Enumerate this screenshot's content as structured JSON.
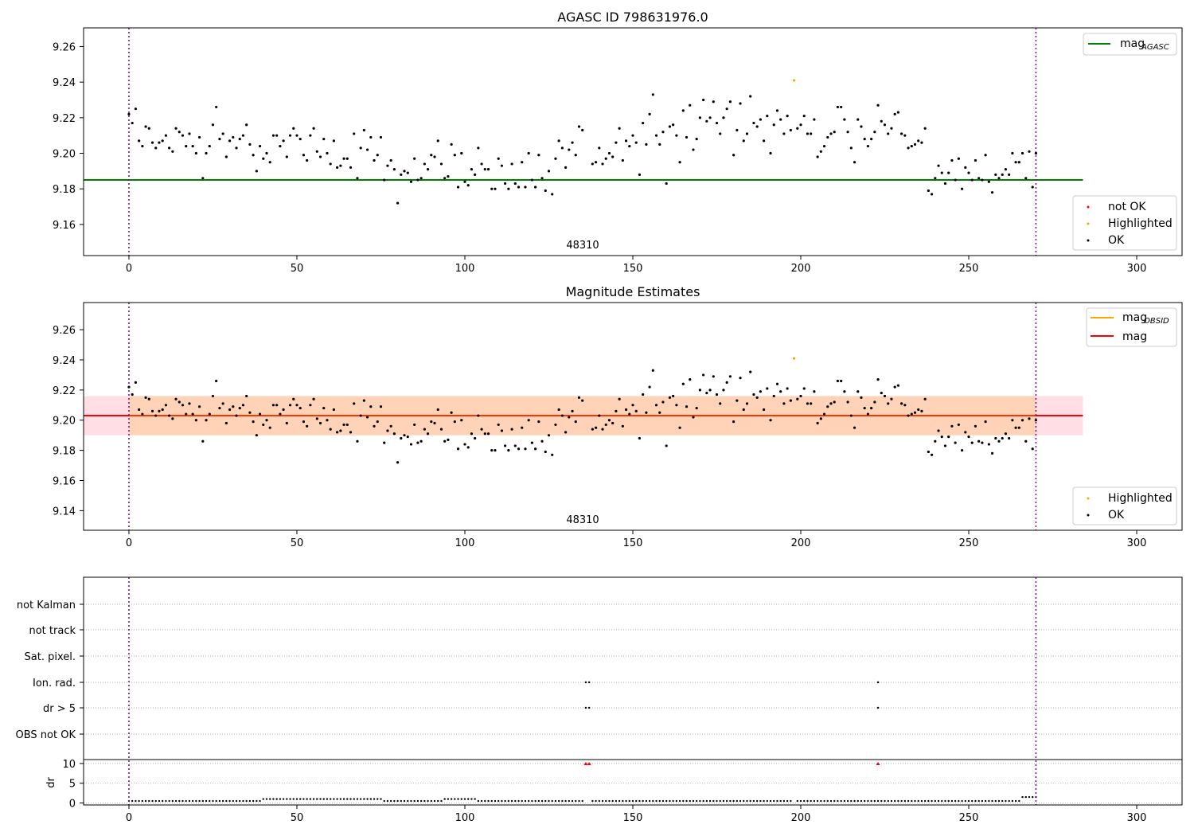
{
  "chart_data": [
    {
      "type": "scatter",
      "title": "AGASC ID 798631976.0",
      "xlim": [
        -13.5,
        313.5
      ],
      "ylim": [
        9.1425,
        9.2705
      ],
      "xticks": [
        0,
        50,
        100,
        150,
        200,
        250,
        300
      ],
      "yticks": [
        9.16,
        9.18,
        9.2,
        9.22,
        9.24,
        9.26
      ],
      "ytick_labels": [
        "9.16",
        "9.18",
        "9.20",
        "9.22",
        "9.24",
        "9.26"
      ],
      "obsid_label": "48310",
      "obsid_boundaries": [
        0,
        270
      ],
      "mag_agasc": 9.185,
      "mag_agasc_x_range": [
        -13.5,
        284
      ],
      "legend_upper": [
        {
          "label": "mag",
          "sub": "AGASC",
          "color": "#008000"
        }
      ],
      "legend_lower": [
        {
          "label": "not OK",
          "color": "#ff0000"
        },
        {
          "label": "Highlighted",
          "color": "#ffa500"
        },
        {
          "label": "OK",
          "color": "#000000"
        }
      ],
      "highlighted_points": [
        {
          "x": 198,
          "y": 9.241
        }
      ],
      "grid": false,
      "legend_position": "upper right / lower right"
    },
    {
      "type": "scatter",
      "title": "Magnitude Estimates",
      "xlim": [
        -13.5,
        313.5
      ],
      "ylim": [
        9.127,
        9.278
      ],
      "xticks": [
        0,
        50,
        100,
        150,
        200,
        250,
        300
      ],
      "yticks": [
        9.14,
        9.16,
        9.18,
        9.2,
        9.22,
        9.24,
        9.26
      ],
      "ytick_labels": [
        "9.14",
        "9.16",
        "9.18",
        "9.20",
        "9.22",
        "9.24",
        "9.26"
      ],
      "obsid_label": "48310",
      "mag_obsid": 9.203,
      "mag": 9.203,
      "mag_band": [
        9.19,
        9.216
      ],
      "legend_upper": [
        {
          "label": "mag",
          "sub": "OBSID",
          "color": "#ffa500"
        },
        {
          "label": "mag",
          "sub": "",
          "color": "#ff0000"
        }
      ],
      "legend_lower": [
        {
          "label": "Highlighted",
          "color": "#ffa500"
        },
        {
          "label": "OK",
          "color": "#000000"
        }
      ],
      "highlighted_points": [
        {
          "x": 198,
          "y": 9.241
        }
      ],
      "grid": false
    },
    {
      "type": "scatter",
      "title": "",
      "xlim": [
        -13.5,
        313.5
      ],
      "xticks": [
        0,
        50,
        100,
        150,
        200,
        250,
        300
      ],
      "flag_rows": [
        "not Kalman",
        "not track",
        "Sat. pixel.",
        "Ion. rad.",
        "dr > 5",
        "OBS not OK"
      ],
      "flag_points": [
        {
          "row": "Ion. rad.",
          "x": [
            136,
            137,
            223
          ]
        },
        {
          "row": "dr > 5",
          "x": [
            136,
            137,
            223
          ]
        }
      ],
      "dr_ylabel": "dr",
      "dr_ylim": [
        -0.5,
        11
      ],
      "dr_yticks": [
        0,
        5,
        10
      ],
      "dr_outliers": [
        {
          "x": 136,
          "y": 10
        },
        {
          "x": 137,
          "y": 10
        },
        {
          "x": 223,
          "y": 10
        }
      ],
      "grid": "horizontal dotted"
    }
  ],
  "mag_series": [
    {
      "x": 0,
      "y": 9.222
    },
    {
      "x": 1,
      "y": 9.217
    },
    {
      "x": 2,
      "y": 9.225
    },
    {
      "x": 3,
      "y": 9.207
    },
    {
      "x": 4,
      "y": 9.204
    },
    {
      "x": 5,
      "y": 9.215
    },
    {
      "x": 6,
      "y": 9.214
    },
    {
      "x": 7,
      "y": 9.206
    },
    {
      "x": 8,
      "y": 9.203
    },
    {
      "x": 9,
      "y": 9.206
    },
    {
      "x": 10,
      "y": 9.207
    },
    {
      "x": 11,
      "y": 9.21
    },
    {
      "x": 12,
      "y": 9.203
    },
    {
      "x": 13,
      "y": 9.201
    },
    {
      "x": 14,
      "y": 9.214
    },
    {
      "x": 15,
      "y": 9.212
    },
    {
      "x": 16,
      "y": 9.21
    },
    {
      "x": 17,
      "y": 9.204
    },
    {
      "x": 18,
      "y": 9.211
    },
    {
      "x": 19,
      "y": 9.204
    },
    {
      "x": 20,
      "y": 9.2
    },
    {
      "x": 21,
      "y": 9.209
    },
    {
      "x": 22,
      "y": 9.186
    },
    {
      "x": 23,
      "y": 9.2
    },
    {
      "x": 24,
      "y": 9.204
    },
    {
      "x": 25,
      "y": 9.216
    },
    {
      "x": 26,
      "y": 9.226
    },
    {
      "x": 27,
      "y": 9.208
    },
    {
      "x": 28,
      "y": 9.211
    },
    {
      "x": 29,
      "y": 9.198
    },
    {
      "x": 30,
      "y": 9.207
    },
    {
      "x": 31,
      "y": 9.209
    },
    {
      "x": 32,
      "y": 9.203
    },
    {
      "x": 33,
      "y": 9.208
    },
    {
      "x": 34,
      "y": 9.21
    },
    {
      "x": 35,
      "y": 9.216
    },
    {
      "x": 36,
      "y": 9.205
    },
    {
      "x": 37,
      "y": 9.199
    },
    {
      "x": 38,
      "y": 9.19
    },
    {
      "x": 39,
      "y": 9.204
    },
    {
      "x": 40,
      "y": 9.197
    },
    {
      "x": 41,
      "y": 9.2
    },
    {
      "x": 42,
      "y": 9.195
    },
    {
      "x": 43,
      "y": 9.21
    },
    {
      "x": 44,
      "y": 9.21
    },
    {
      "x": 45,
      "y": 9.204
    },
    {
      "x": 46,
      "y": 9.207
    },
    {
      "x": 47,
      "y": 9.198
    },
    {
      "x": 48,
      "y": 9.21
    },
    {
      "x": 49,
      "y": 9.214
    },
    {
      "x": 50,
      "y": 9.21
    },
    {
      "x": 51,
      "y": 9.208
    },
    {
      "x": 52,
      "y": 9.199
    },
    {
      "x": 53,
      "y": 9.196
    },
    {
      "x": 54,
      "y": 9.21
    },
    {
      "x": 55,
      "y": 9.214
    },
    {
      "x": 56,
      "y": 9.201
    },
    {
      "x": 57,
      "y": 9.198
    },
    {
      "x": 58,
      "y": 9.208
    },
    {
      "x": 59,
      "y": 9.2
    },
    {
      "x": 60,
      "y": 9.194
    },
    {
      "x": 61,
      "y": 9.207
    },
    {
      "x": 62,
      "y": 9.192
    },
    {
      "x": 63,
      "y": 9.193
    },
    {
      "x": 64,
      "y": 9.197
    },
    {
      "x": 65,
      "y": 9.197
    },
    {
      "x": 66,
      "y": 9.192
    },
    {
      "x": 67,
      "y": 9.211
    },
    {
      "x": 68,
      "y": 9.186
    },
    {
      "x": 69,
      "y": 9.203
    },
    {
      "x": 70,
      "y": 9.213
    },
    {
      "x": 71,
      "y": 9.202
    },
    {
      "x": 72,
      "y": 9.209
    },
    {
      "x": 73,
      "y": 9.196
    },
    {
      "x": 74,
      "y": 9.199
    },
    {
      "x": 75,
      "y": 9.209
    },
    {
      "x": 76,
      "y": 9.185
    },
    {
      "x": 77,
      "y": 9.193
    },
    {
      "x": 78,
      "y": 9.196
    },
    {
      "x": 79,
      "y": 9.191
    },
    {
      "x": 80,
      "y": 9.172
    },
    {
      "x": 81,
      "y": 9.188
    },
    {
      "x": 82,
      "y": 9.19
    },
    {
      "x": 83,
      "y": 9.189
    },
    {
      "x": 84,
      "y": 9.184
    },
    {
      "x": 85,
      "y": 9.197
    },
    {
      "x": 86,
      "y": 9.185
    },
    {
      "x": 87,
      "y": 9.186
    },
    {
      "x": 88,
      "y": 9.194
    },
    {
      "x": 89,
      "y": 9.191
    },
    {
      "x": 90,
      "y": 9.199
    },
    {
      "x": 91,
      "y": 9.198
    },
    {
      "x": 92,
      "y": 9.207
    },
    {
      "x": 93,
      "y": 9.194
    },
    {
      "x": 94,
      "y": 9.186
    },
    {
      "x": 95,
      "y": 9.187
    },
    {
      "x": 96,
      "y": 9.205
    },
    {
      "x": 97,
      "y": 9.199
    },
    {
      "x": 98,
      "y": 9.181
    },
    {
      "x": 99,
      "y": 9.2
    },
    {
      "x": 100,
      "y": 9.184
    },
    {
      "x": 101,
      "y": 9.182
    },
    {
      "x": 102,
      "y": 9.191
    },
    {
      "x": 103,
      "y": 9.188
    },
    {
      "x": 104,
      "y": 9.203
    },
    {
      "x": 105,
      "y": 9.194
    },
    {
      "x": 106,
      "y": 9.191
    },
    {
      "x": 107,
      "y": 9.191
    },
    {
      "x": 108,
      "y": 9.18
    },
    {
      "x": 109,
      "y": 9.18
    },
    {
      "x": 110,
      "y": 9.197
    },
    {
      "x": 111,
      "y": 9.193
    },
    {
      "x": 112,
      "y": 9.183
    },
    {
      "x": 113,
      "y": 9.18
    },
    {
      "x": 114,
      "y": 9.194
    },
    {
      "x": 115,
      "y": 9.183
    },
    {
      "x": 116,
      "y": 9.181
    },
    {
      "x": 117,
      "y": 9.195
    },
    {
      "x": 118,
      "y": 9.181
    },
    {
      "x": 119,
      "y": 9.2
    },
    {
      "x": 120,
      "y": 9.185
    },
    {
      "x": 121,
      "y": 9.181
    },
    {
      "x": 122,
      "y": 9.199
    },
    {
      "x": 123,
      "y": 9.186
    },
    {
      "x": 124,
      "y": 9.179
    },
    {
      "x": 125,
      "y": 9.19
    },
    {
      "x": 126,
      "y": 9.177
    },
    {
      "x": 127,
      "y": 9.197
    },
    {
      "x": 128,
      "y": 9.207
    },
    {
      "x": 129,
      "y": 9.203
    },
    {
      "x": 130,
      "y": 9.192
    },
    {
      "x": 131,
      "y": 9.202
    },
    {
      "x": 132,
      "y": 9.206
    },
    {
      "x": 133,
      "y": 9.199
    },
    {
      "x": 134,
      "y": 9.215
    },
    {
      "x": 135,
      "y": 9.213
    },
    {
      "x": 138,
      "y": 9.194
    },
    {
      "x": 139,
      "y": 9.195
    },
    {
      "x": 140,
      "y": 9.203
    },
    {
      "x": 141,
      "y": 9.194
    },
    {
      "x": 142,
      "y": 9.197
    },
    {
      "x": 143,
      "y": 9.2
    },
    {
      "x": 144,
      "y": 9.198
    },
    {
      "x": 145,
      "y": 9.206
    },
    {
      "x": 146,
      "y": 9.214
    },
    {
      "x": 147,
      "y": 9.196
    },
    {
      "x": 148,
      "y": 9.207
    },
    {
      "x": 149,
      "y": 9.204
    },
    {
      "x": 150,
      "y": 9.21
    },
    {
      "x": 151,
      "y": 9.206
    },
    {
      "x": 152,
      "y": 9.188
    },
    {
      "x": 153,
      "y": 9.217
    },
    {
      "x": 154,
      "y": 9.205
    },
    {
      "x": 155,
      "y": 9.222
    },
    {
      "x": 156,
      "y": 9.233
    },
    {
      "x": 157,
      "y": 9.21
    },
    {
      "x": 158,
      "y": 9.205
    },
    {
      "x": 159,
      "y": 9.212
    },
    {
      "x": 160,
      "y": 9.183
    },
    {
      "x": 161,
      "y": 9.215
    },
    {
      "x": 162,
      "y": 9.216
    },
    {
      "x": 163,
      "y": 9.21
    },
    {
      "x": 164,
      "y": 9.195
    },
    {
      "x": 165,
      "y": 9.224
    },
    {
      "x": 166,
      "y": 9.209
    },
    {
      "x": 167,
      "y": 9.227
    },
    {
      "x": 168,
      "y": 9.202
    },
    {
      "x": 169,
      "y": 9.208
    },
    {
      "x": 170,
      "y": 9.22
    },
    {
      "x": 171,
      "y": 9.23
    },
    {
      "x": 172,
      "y": 9.218
    },
    {
      "x": 173,
      "y": 9.22
    },
    {
      "x": 174,
      "y": 9.229
    },
    {
      "x": 175,
      "y": 9.217
    },
    {
      "x": 176,
      "y": 9.211
    },
    {
      "x": 177,
      "y": 9.22
    },
    {
      "x": 178,
      "y": 9.225
    },
    {
      "x": 179,
      "y": 9.229
    },
    {
      "x": 180,
      "y": 9.199
    },
    {
      "x": 181,
      "y": 9.213
    },
    {
      "x": 182,
      "y": 9.228
    },
    {
      "x": 183,
      "y": 9.207
    },
    {
      "x": 184,
      "y": 9.211
    },
    {
      "x": 185,
      "y": 9.232
    },
    {
      "x": 186,
      "y": 9.217
    },
    {
      "x": 187,
      "y": 9.215
    },
    {
      "x": 188,
      "y": 9.219
    },
    {
      "x": 189,
      "y": 9.207
    },
    {
      "x": 190,
      "y": 9.221
    },
    {
      "x": 191,
      "y": 9.2
    },
    {
      "x": 192,
      "y": 9.216
    },
    {
      "x": 193,
      "y": 9.224
    },
    {
      "x": 194,
      "y": 9.219
    },
    {
      "x": 195,
      "y": 9.211
    },
    {
      "x": 196,
      "y": 9.221
    },
    {
      "x": 197,
      "y": 9.213
    },
    {
      "x": 199,
      "y": 9.214
    },
    {
      "x": 200,
      "y": 9.216
    },
    {
      "x": 201,
      "y": 9.221
    },
    {
      "x": 202,
      "y": 9.211
    },
    {
      "x": 203,
      "y": 9.211
    },
    {
      "x": 204,
      "y": 9.219
    },
    {
      "x": 205,
      "y": 9.198
    },
    {
      "x": 206,
      "y": 9.201
    },
    {
      "x": 207,
      "y": 9.204
    },
    {
      "x": 208,
      "y": 9.209
    },
    {
      "x": 209,
      "y": 9.211
    },
    {
      "x": 210,
      "y": 9.212
    },
    {
      "x": 211,
      "y": 9.226
    },
    {
      "x": 212,
      "y": 9.226
    },
    {
      "x": 213,
      "y": 9.219
    },
    {
      "x": 214,
      "y": 9.212
    },
    {
      "x": 215,
      "y": 9.203
    },
    {
      "x": 216,
      "y": 9.195
    },
    {
      "x": 217,
      "y": 9.219
    },
    {
      "x": 218,
      "y": 9.215
    },
    {
      "x": 219,
      "y": 9.208
    },
    {
      "x": 220,
      "y": 9.204
    },
    {
      "x": 221,
      "y": 9.208
    },
    {
      "x": 222,
      "y": 9.212
    },
    {
      "x": 223,
      "y": 9.227
    },
    {
      "x": 224,
      "y": 9.218
    },
    {
      "x": 225,
      "y": 9.216
    },
    {
      "x": 226,
      "y": 9.211
    },
    {
      "x": 227,
      "y": 9.214
    },
    {
      "x": 228,
      "y": 9.222
    },
    {
      "x": 229,
      "y": 9.223
    },
    {
      "x": 230,
      "y": 9.211
    },
    {
      "x": 231,
      "y": 9.21
    },
    {
      "x": 232,
      "y": 9.203
    },
    {
      "x": 233,
      "y": 9.204
    },
    {
      "x": 234,
      "y": 9.205
    },
    {
      "x": 235,
      "y": 9.207
    },
    {
      "x": 236,
      "y": 9.206
    },
    {
      "x": 237,
      "y": 9.214
    },
    {
      "x": 238,
      "y": 9.179
    },
    {
      "x": 239,
      "y": 9.177
    },
    {
      "x": 240,
      "y": 9.186
    },
    {
      "x": 241,
      "y": 9.193
    },
    {
      "x": 242,
      "y": 9.189
    },
    {
      "x": 243,
      "y": 9.183
    },
    {
      "x": 244,
      "y": 9.189
    },
    {
      "x": 245,
      "y": 9.196
    },
    {
      "x": 246,
      "y": 9.185
    },
    {
      "x": 247,
      "y": 9.197
    },
    {
      "x": 248,
      "y": 9.18
    },
    {
      "x": 249,
      "y": 9.192
    },
    {
      "x": 250,
      "y": 9.189
    },
    {
      "x": 251,
      "y": 9.185
    },
    {
      "x": 252,
      "y": 9.196
    },
    {
      "x": 253,
      "y": 9.186
    },
    {
      "x": 254,
      "y": 9.185
    },
    {
      "x": 255,
      "y": 9.199
    },
    {
      "x": 256,
      "y": 9.184
    },
    {
      "x": 257,
      "y": 9.178
    },
    {
      "x": 258,
      "y": 9.188
    },
    {
      "x": 259,
      "y": 9.186
    },
    {
      "x": 260,
      "y": 9.188
    },
    {
      "x": 261,
      "y": 9.191
    },
    {
      "x": 262,
      "y": 9.188
    },
    {
      "x": 263,
      "y": 9.2
    },
    {
      "x": 264,
      "y": 9.195
    },
    {
      "x": 265,
      "y": 9.195
    },
    {
      "x": 266,
      "y": 9.2
    },
    {
      "x": 267,
      "y": 9.186
    },
    {
      "x": 268,
      "y": 9.201
    },
    {
      "x": 269,
      "y": 9.181
    },
    {
      "x": 270,
      "y": 9.2
    }
  ],
  "dr_series_note": "",
  "colors": {
    "ok": "#000000",
    "highlighted": "#ffa500",
    "not_ok": "#ff0000",
    "mag_agasc": "#008000",
    "mag_obsid": "#ffa500",
    "mag": "#ff0000",
    "obsid_boundary": "#800080"
  }
}
